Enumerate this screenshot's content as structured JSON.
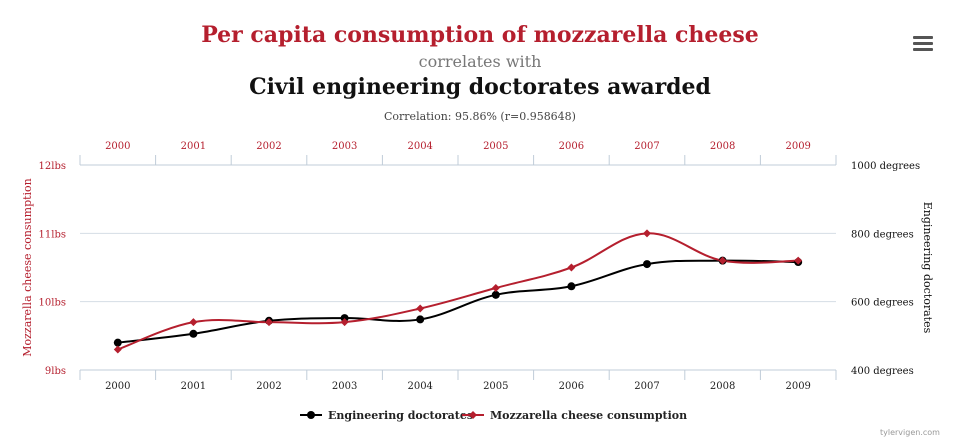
{
  "header": {
    "title1": "Per capita consumption of mozzarella cheese",
    "connector": "correlates with",
    "title2": "Civil engineering doctorates awarded",
    "correlation": "Correlation: 95.86% (r=0.958648)"
  },
  "watermark": "tylervigen.com",
  "menu_icon": "hamburger-menu-icon",
  "colors": {
    "cheese": "#b51f2e",
    "doctorates": "#000000",
    "grid": "#d5dde5"
  },
  "chart_data": {
    "type": "line",
    "x": [
      "2000",
      "2001",
      "2002",
      "2003",
      "2004",
      "2005",
      "2006",
      "2007",
      "2008",
      "2009"
    ],
    "series": [
      {
        "name": "Engineering doctorates",
        "axis": "right",
        "values": [
          480,
          506,
          544,
          552,
          548,
          620,
          645,
          710,
          720,
          716
        ]
      },
      {
        "name": "Mozzarella cheese consumption",
        "axis": "left",
        "values": [
          9.3,
          9.7,
          9.7,
          9.7,
          9.9,
          10.2,
          10.5,
          11.0,
          10.6,
          10.6
        ]
      }
    ],
    "left_axis": {
      "label": "Mozzarella cheese consumption",
      "range": [
        9,
        12
      ],
      "ticks": [
        {
          "value": 9,
          "label": "9lbs"
        },
        {
          "value": 10,
          "label": "10lbs"
        },
        {
          "value": 11,
          "label": "11lbs"
        },
        {
          "value": 12,
          "label": "12lbs"
        }
      ]
    },
    "right_axis": {
      "label": "Engineering doctorates",
      "range": [
        400,
        1000
      ],
      "ticks": [
        {
          "value": 400,
          "label": "400 degrees"
        },
        {
          "value": 600,
          "label": "600 degrees"
        },
        {
          "value": 800,
          "label": "800 degrees"
        },
        {
          "value": 1000,
          "label": "1000 degrees"
        }
      ]
    },
    "grid": true,
    "legend": "bottom-center"
  }
}
